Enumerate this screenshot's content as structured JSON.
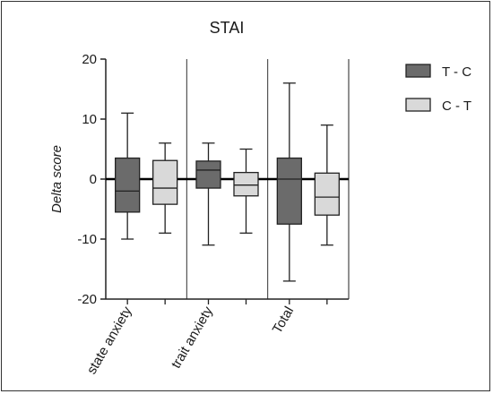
{
  "chart_data": {
    "type": "boxplot",
    "title": "STAI",
    "ylabel": "Delta score",
    "xlabel": "",
    "ylim": [
      -20,
      20
    ],
    "yticks": [
      -20,
      -10,
      0,
      10,
      20
    ],
    "categories": [
      "state anxiety",
      "trait anxiety",
      "Total"
    ],
    "legend_position": "right",
    "series": [
      {
        "name": "T - C",
        "color": "#6b6b6b",
        "boxes": [
          {
            "min": -10,
            "q1": -5.5,
            "median": -2,
            "q3": 3.5,
            "max": 11
          },
          {
            "min": -11,
            "q1": -1.5,
            "median": 1.5,
            "q3": 3,
            "max": 6
          },
          {
            "min": -17,
            "q1": -7.5,
            "median": 0,
            "q3": 3.5,
            "max": 16
          }
        ]
      },
      {
        "name": "C - T",
        "color": "#d9d9d9",
        "boxes": [
          {
            "min": -9,
            "q1": -4.2,
            "median": -1.5,
            "q3": 3.1,
            "max": 6
          },
          {
            "min": -9,
            "q1": -2.8,
            "median": -1,
            "q3": 1.1,
            "max": 5
          },
          {
            "min": -11,
            "q1": -6,
            "median": -3,
            "q3": 1,
            "max": 9
          }
        ]
      }
    ]
  }
}
